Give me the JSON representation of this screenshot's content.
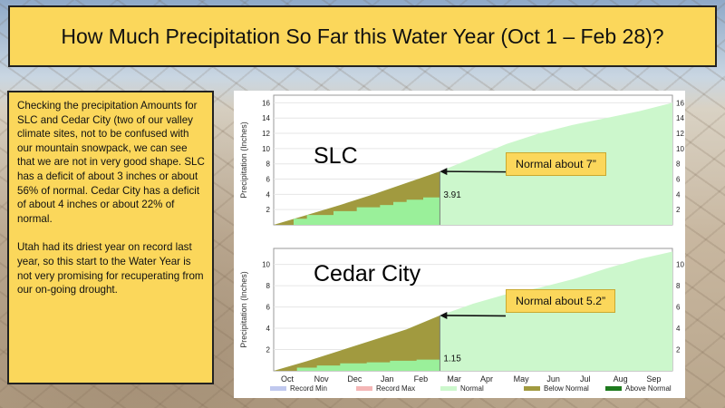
{
  "slide": {
    "title": "How Much Precipitation So Far this Water Year (Oct 1 – Feb 28)?",
    "paragraph1": "Checking the precipitation Amounts for SLC and Cedar City (two of our valley climate sites, not to be confused with our mountain snowpack, we can see that we are not in very good shape. SLC has a deficit of about 3 inches or about 56% of normal. Cedar City has a deficit of about 4 inches or about 22% of normal.",
    "paragraph2": "Utah had its driest year on record last year, so this start to the Water Year is not very promising for recuperating from our on-going drought."
  },
  "labels": {
    "slc": "SLC",
    "cedar": "Cedar City",
    "slc_callout": "Normal about 7”",
    "cedar_callout": "Normal about 5.2”"
  },
  "colors": {
    "title_bg": "#fbd75b",
    "normal": "#ccf7cc",
    "below_normal": "#a19a3f",
    "above_normal": "#9af09a",
    "record_min": "#c0c8ee",
    "record_max": "#f4b6b6",
    "above_normal_legend": "#1e7a1e"
  },
  "chart_data": [
    {
      "type": "area",
      "title": "SLC",
      "ylabel": "Precipitation (Inches)",
      "ylim": [
        0,
        17
      ],
      "yticks": [
        "2",
        "4",
        "6",
        "8",
        "10",
        "12",
        "14",
        "16"
      ],
      "x_months": [
        "Oct",
        "Nov",
        "Dec",
        "Jan",
        "Feb",
        "Mar",
        "Apr",
        "May",
        "Jun",
        "Jul",
        "Aug",
        "Sep"
      ],
      "normal_cumulative": [
        0,
        1.3,
        2.6,
        4.0,
        5.5,
        7.0,
        8.8,
        10.6,
        12.0,
        13.1,
        14.0,
        14.9,
        16.0
      ],
      "observed_cumulative": [
        0,
        0.8,
        1.3,
        1.8,
        2.3,
        2.6,
        3.0,
        3.3,
        3.6,
        3.91
      ],
      "observed_x": [
        0,
        0.6,
        1.0,
        1.8,
        2.5,
        3.2,
        3.6,
        4.0,
        4.5,
        5.0
      ],
      "current_value": "3.91",
      "normal_at_date": 7.0
    },
    {
      "type": "area",
      "title": "Cedar City",
      "ylabel": "Precipitation (Inches)",
      "ylim": [
        0,
        11.5
      ],
      "yticks": [
        "2",
        "4",
        "6",
        "8",
        "10"
      ],
      "x_months": [
        "Oct",
        "Nov",
        "Dec",
        "Jan",
        "Feb",
        "Mar",
        "Apr",
        "May",
        "Jun",
        "Jul",
        "Aug",
        "Sep"
      ],
      "normal_cumulative": [
        0,
        0.9,
        1.9,
        2.9,
        3.9,
        5.2,
        6.3,
        7.2,
        7.8,
        8.6,
        9.6,
        10.5,
        11.2
      ],
      "observed_cumulative": [
        0,
        0.3,
        0.5,
        0.7,
        0.8,
        0.95,
        1.05,
        1.15
      ],
      "observed_x": [
        0,
        0.7,
        1.3,
        2.0,
        2.8,
        3.5,
        4.3,
        5.0
      ],
      "current_value": "1.15",
      "normal_at_date": 5.2
    }
  ],
  "legend": {
    "items": [
      "Record Min",
      "Record Max",
      "Normal",
      "Below Normal",
      "Above Normal"
    ]
  }
}
